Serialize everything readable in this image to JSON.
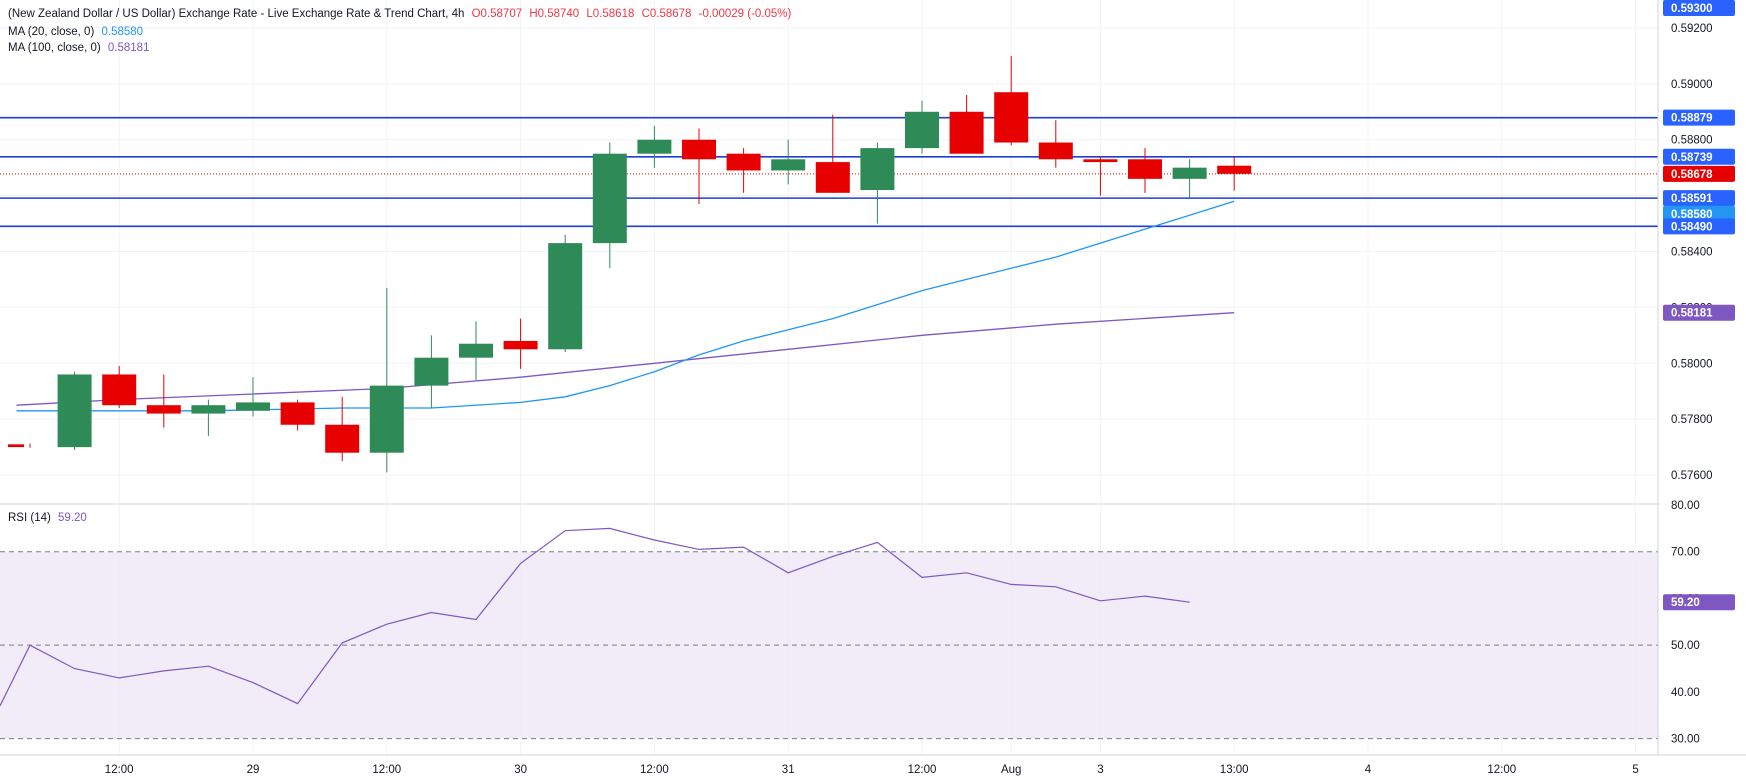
{
  "header": {
    "title": "(New Zealand Dollar / US Dollar) Exchange Rate - Live Exchange Rate & Trend Chart, 4h",
    "open": "O0.58707",
    "high": "H0.58740",
    "low": "L0.58618",
    "close": "C0.58678",
    "change": "-0.00029 (-0.05%)"
  },
  "legend": {
    "ma20_label": "MA (20, close, 0)",
    "ma20_value": "0.58580",
    "ma100_label": "MA (100, close, 0)",
    "ma100_value": "0.58181",
    "rsi_label": "RSI (14)",
    "rsi_value": "59.20"
  },
  "colors": {
    "up": "#2e8b57",
    "down": "#e60000",
    "ma20": "#2196f3",
    "ma100": "#7e57c2",
    "level_line": "#1e3fcf",
    "last_price": "#e60000"
  },
  "chart_data": [
    {
      "type": "candlestick",
      "interval": "4h",
      "ylim": [
        0.575,
        0.593
      ],
      "yticks": [
        "0.57600",
        "0.57800",
        "0.58000",
        "0.58200",
        "0.58400",
        "0.58600",
        "0.58800",
        "0.59000",
        "0.59200"
      ],
      "x_labels": [
        {
          "label": "12:00",
          "x": 2
        },
        {
          "label": "29",
          "x": 5
        },
        {
          "label": "12:00",
          "x": 8
        },
        {
          "label": "30",
          "x": 11
        },
        {
          "label": "12:00",
          "x": 14
        },
        {
          "label": "31",
          "x": 17
        },
        {
          "label": "12:00",
          "x": 20
        },
        {
          "label": "Aug",
          "x": 22
        },
        {
          "label": "3",
          "x": 24
        },
        {
          "label": "13:00",
          "x": 27
        },
        {
          "label": "4",
          "x": 30
        },
        {
          "label": "12:00",
          "x": 33
        },
        {
          "label": "5",
          "x": 36
        }
      ],
      "candles": [
        {
          "x": 0,
          "o": 0.5771,
          "h": 0.57712,
          "l": 0.57698,
          "c": 0.577
        },
        {
          "x": 1,
          "o": 0.577,
          "h": 0.5797,
          "l": 0.5769,
          "c": 0.5796
        },
        {
          "x": 2,
          "o": 0.5796,
          "h": 0.5799,
          "l": 0.5784,
          "c": 0.5785
        },
        {
          "x": 3,
          "o": 0.5785,
          "h": 0.5796,
          "l": 0.5777,
          "c": 0.5782
        },
        {
          "x": 4,
          "o": 0.5782,
          "h": 0.5787,
          "l": 0.5774,
          "c": 0.5785
        },
        {
          "x": 5,
          "o": 0.5783,
          "h": 0.5795,
          "l": 0.5781,
          "c": 0.5786
        },
        {
          "x": 6,
          "o": 0.5786,
          "h": 0.5787,
          "l": 0.5776,
          "c": 0.5778
        },
        {
          "x": 7,
          "o": 0.5778,
          "h": 0.5788,
          "l": 0.5765,
          "c": 0.5768
        },
        {
          "x": 8,
          "o": 0.5768,
          "h": 0.5827,
          "l": 0.5761,
          "c": 0.5792
        },
        {
          "x": 9,
          "o": 0.5792,
          "h": 0.581,
          "l": 0.5784,
          "c": 0.5802
        },
        {
          "x": 10,
          "o": 0.5802,
          "h": 0.5815,
          "l": 0.5794,
          "c": 0.5807
        },
        {
          "x": 11,
          "o": 0.5808,
          "h": 0.5816,
          "l": 0.5798,
          "c": 0.5805
        },
        {
          "x": 12,
          "o": 0.5805,
          "h": 0.5846,
          "l": 0.5804,
          "c": 0.5843
        },
        {
          "x": 13,
          "o": 0.5843,
          "h": 0.5879,
          "l": 0.5834,
          "c": 0.5875
        },
        {
          "x": 14,
          "o": 0.5875,
          "h": 0.5885,
          "l": 0.587,
          "c": 0.588
        },
        {
          "x": 15,
          "o": 0.588,
          "h": 0.5884,
          "l": 0.5857,
          "c": 0.5873
        },
        {
          "x": 16,
          "o": 0.5875,
          "h": 0.5877,
          "l": 0.5861,
          "c": 0.5869
        },
        {
          "x": 17,
          "o": 0.5869,
          "h": 0.588,
          "l": 0.5864,
          "c": 0.5873
        },
        {
          "x": 18,
          "o": 0.5872,
          "h": 0.5889,
          "l": 0.5861,
          "c": 0.5861
        },
        {
          "x": 19,
          "o": 0.5862,
          "h": 0.5879,
          "l": 0.585,
          "c": 0.5877
        },
        {
          "x": 20,
          "o": 0.5877,
          "h": 0.5894,
          "l": 0.5875,
          "c": 0.589
        },
        {
          "x": 21,
          "o": 0.589,
          "h": 0.5896,
          "l": 0.5875,
          "c": 0.5875
        },
        {
          "x": 22,
          "o": 0.5897,
          "h": 0.591,
          "l": 0.5878,
          "c": 0.5879
        },
        {
          "x": 23,
          "o": 0.5879,
          "h": 0.5887,
          "l": 0.587,
          "c": 0.5873
        },
        {
          "x": 24,
          "o": 0.5873,
          "h": 0.5874,
          "l": 0.586,
          "c": 0.5872
        },
        {
          "x": 25,
          "o": 0.5873,
          "h": 0.5877,
          "l": 0.5861,
          "c": 0.5866
        },
        {
          "x": 26,
          "o": 0.5866,
          "h": 0.5873,
          "l": 0.5859,
          "c": 0.587
        },
        {
          "x": 27,
          "o": 0.58707,
          "h": 0.5874,
          "l": 0.58618,
          "c": 0.58678
        }
      ],
      "ma20": [
        {
          "x": -0.3,
          "y": 0.5783
        },
        {
          "x": 1,
          "y": 0.5783
        },
        {
          "x": 4,
          "y": 0.5783
        },
        {
          "x": 7,
          "y": 0.5784
        },
        {
          "x": 9,
          "y": 0.5784
        },
        {
          "x": 11,
          "y": 0.5786
        },
        {
          "x": 12,
          "y": 0.5788
        },
        {
          "x": 13,
          "y": 0.5792
        },
        {
          "x": 14,
          "y": 0.5797
        },
        {
          "x": 15,
          "y": 0.5803
        },
        {
          "x": 16,
          "y": 0.5808
        },
        {
          "x": 17,
          "y": 0.5812
        },
        {
          "x": 18,
          "y": 0.5816
        },
        {
          "x": 19,
          "y": 0.5821
        },
        {
          "x": 20,
          "y": 0.5826
        },
        {
          "x": 21,
          "y": 0.583
        },
        {
          "x": 22,
          "y": 0.5834
        },
        {
          "x": 23,
          "y": 0.5838
        },
        {
          "x": 24,
          "y": 0.5843
        },
        {
          "x": 25,
          "y": 0.5848
        },
        {
          "x": 26,
          "y": 0.5853
        },
        {
          "x": 27,
          "y": 0.5858
        }
      ],
      "ma100": [
        {
          "x": -0.3,
          "y": 0.5785
        },
        {
          "x": 2,
          "y": 0.5787
        },
        {
          "x": 5,
          "y": 0.5789
        },
        {
          "x": 8,
          "y": 0.5791
        },
        {
          "x": 11,
          "y": 0.5795
        },
        {
          "x": 14,
          "y": 0.58
        },
        {
          "x": 17,
          "y": 0.5805
        },
        {
          "x": 20,
          "y": 0.581
        },
        {
          "x": 23,
          "y": 0.5814
        },
        {
          "x": 27,
          "y": 0.58181
        }
      ],
      "levels": [
        {
          "label": "0.58879",
          "y": 0.58879
        },
        {
          "label": "0.58739",
          "y": 0.58739
        },
        {
          "label": "0.58591",
          "y": 0.58591
        },
        {
          "label": "0.58490",
          "y": 0.5849
        }
      ],
      "price_tags": [
        {
          "label": "0.59300",
          "y": 0.593,
          "color": "#2962ff"
        },
        {
          "label": "0.58879",
          "y": 0.58879,
          "color": "#2962ff"
        },
        {
          "label": "0.58739",
          "y": 0.58739,
          "color": "#2962ff"
        },
        {
          "label": "0.58678",
          "y": 0.58678,
          "color": "#e60000"
        },
        {
          "label": "0.58591",
          "y": 0.58591,
          "color": "#2962ff"
        },
        {
          "label": "0.58580",
          "y": 0.58535,
          "color": "#2196f3"
        },
        {
          "label": "0.58490",
          "y": 0.5849,
          "color": "#2962ff"
        },
        {
          "label": "0.58181",
          "y": 0.58181,
          "color": "#7e57c2"
        }
      ],
      "last_price": 0.58678
    },
    {
      "type": "line",
      "name": "RSI (14)",
      "ylim": [
        26.5,
        80
      ],
      "yticks": [
        "30.00",
        "40.00",
        "50.00",
        "60.00",
        "70.00",
        "80.00"
      ],
      "overbought": 70,
      "oversold": 30,
      "midline": 50,
      "last_value": "59.20",
      "points": [
        {
          "x": -0.8,
          "y": 37.0
        },
        {
          "x": 0,
          "y": 50.0
        },
        {
          "x": 1,
          "y": 45.0
        },
        {
          "x": 2,
          "y": 43.0
        },
        {
          "x": 3,
          "y": 44.5
        },
        {
          "x": 4,
          "y": 45.5
        },
        {
          "x": 5,
          "y": 42.0
        },
        {
          "x": 6,
          "y": 37.5
        },
        {
          "x": 7,
          "y": 50.5
        },
        {
          "x": 8,
          "y": 54.5
        },
        {
          "x": 9,
          "y": 57.0
        },
        {
          "x": 10,
          "y": 55.5
        },
        {
          "x": 11,
          "y": 67.5
        },
        {
          "x": 12,
          "y": 74.5
        },
        {
          "x": 13,
          "y": 75.0
        },
        {
          "x": 14,
          "y": 72.5
        },
        {
          "x": 15,
          "y": 70.5
        },
        {
          "x": 16,
          "y": 71.0
        },
        {
          "x": 17,
          "y": 65.5
        },
        {
          "x": 18,
          "y": 69.0
        },
        {
          "x": 19,
          "y": 72.0
        },
        {
          "x": 20,
          "y": 64.5
        },
        {
          "x": 21,
          "y": 65.5
        },
        {
          "x": 22,
          "y": 63.0
        },
        {
          "x": 23,
          "y": 62.5
        },
        {
          "x": 24,
          "y": 59.5
        },
        {
          "x": 25,
          "y": 60.5
        },
        {
          "x": 26,
          "y": 59.2
        }
      ]
    }
  ]
}
